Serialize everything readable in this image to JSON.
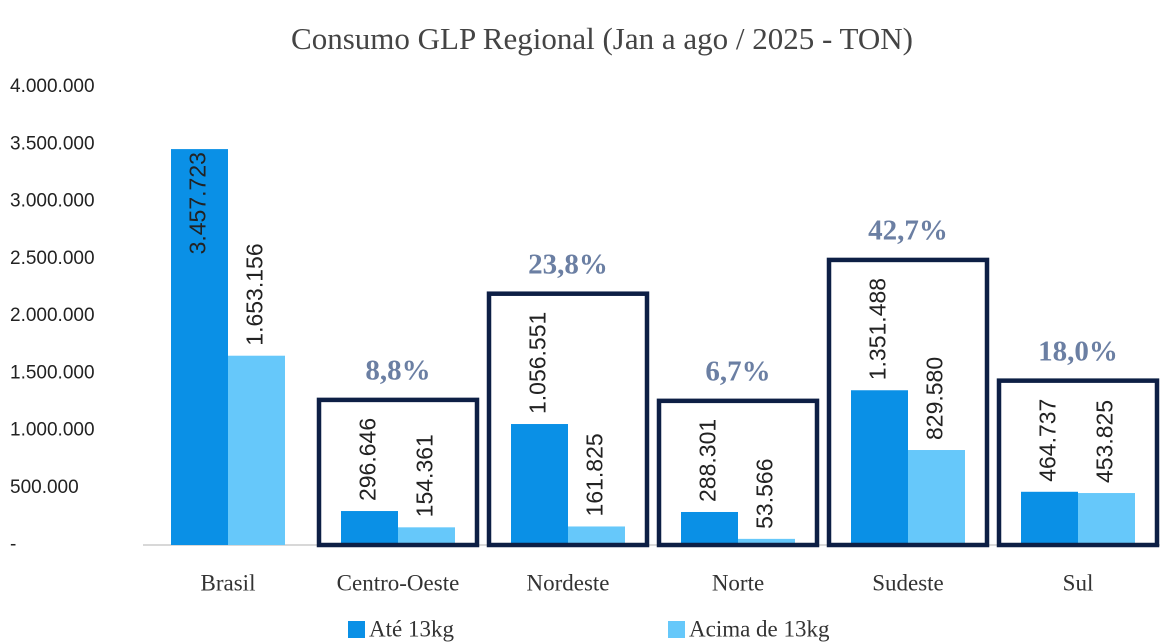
{
  "chart_data": {
    "type": "bar",
    "title": "Consumo GLP Regional (Jan a ago / 2025 - TON)",
    "categories": [
      "Brasil",
      "Centro-Oeste",
      "Nordeste",
      "Norte",
      "Sudeste",
      "Sul"
    ],
    "series": [
      {
        "name": "Até 13kg",
        "color": "#0a90e6",
        "values": [
          3457723,
          296646,
          1056551,
          288301,
          1351488,
          464737
        ],
        "value_labels": [
          "3.457.723",
          "296.646",
          "1.056.551",
          "288.301",
          "1.351.488",
          "464.737"
        ]
      },
      {
        "name": "Acima de 13kg",
        "color": "#66c8fa",
        "values": [
          1653156,
          154361,
          161825,
          53566,
          829580,
          453825
        ],
        "value_labels": [
          "1.653.156",
          "154.361",
          "161.825",
          "53.566",
          "829.580",
          "453.825"
        ]
      }
    ],
    "annotations": [
      {
        "category": "Centro-Oeste",
        "text": "8,8%"
      },
      {
        "category": "Nordeste",
        "text": "23,8%"
      },
      {
        "category": "Norte",
        "text": "6,7%"
      },
      {
        "category": "Sudeste",
        "text": "42,7%"
      },
      {
        "category": "Sul",
        "text": "18,0%"
      }
    ],
    "ylim": [
      0,
      4000000
    ],
    "yticks": [
      {
        "value": 0,
        "label": "-"
      },
      {
        "value": 500000,
        "label": "500.000"
      },
      {
        "value": 1000000,
        "label": "1.000.000"
      },
      {
        "value": 1500000,
        "label": "1.500.000"
      },
      {
        "value": 2000000,
        "label": "2.000.000"
      },
      {
        "value": 2500000,
        "label": "2.500.000"
      },
      {
        "value": 3000000,
        "label": "3.000.000"
      },
      {
        "value": 3500000,
        "label": "3.500.000"
      },
      {
        "value": 4000000,
        "label": "4.000.000"
      }
    ],
    "grid": false,
    "legend": "bottom"
  }
}
